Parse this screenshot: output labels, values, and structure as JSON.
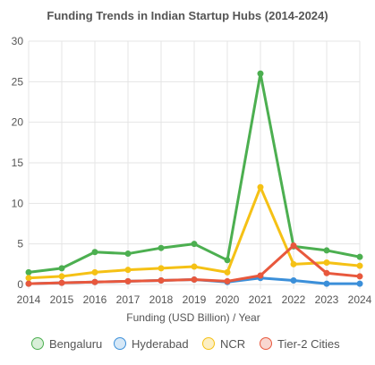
{
  "chart_data": {
    "type": "line",
    "title": "Funding Trends in Indian Startup Hubs (2014-2024)",
    "xlabel": "Funding (USD Billion) / Year",
    "ylabel": "",
    "x": [
      "2014",
      "2015",
      "2016",
      "2017",
      "2018",
      "2019",
      "2020",
      "2021",
      "2022",
      "2023",
      "2024"
    ],
    "ylim": [
      0,
      30
    ],
    "yticks": [
      "0",
      "5",
      "10",
      "15",
      "20",
      "25",
      "30"
    ],
    "grid": true,
    "legend_position": "bottom",
    "series": [
      {
        "name": "Bengaluru",
        "color": "#4caf50",
        "fill": "#d9efd9",
        "values": [
          1.5,
          2.0,
          4.0,
          3.8,
          4.5,
          5.0,
          3.0,
          26.0,
          4.7,
          4.2,
          3.4
        ]
      },
      {
        "name": "Hyderabad",
        "color": "#3b8fd9",
        "fill": "#d6e8f7",
        "values": [
          0.1,
          0.2,
          0.3,
          0.4,
          0.5,
          0.6,
          0.3,
          0.8,
          0.5,
          0.1,
          0.1
        ]
      },
      {
        "name": "NCR",
        "color": "#f5c115",
        "fill": "#fcefc4",
        "values": [
          0.8,
          1.0,
          1.5,
          1.8,
          2.0,
          2.2,
          1.5,
          12.0,
          2.5,
          2.7,
          2.3
        ]
      },
      {
        "name": "Tier-2 Cities",
        "color": "#e8583d",
        "fill": "#f9d7d0",
        "values": [
          0.1,
          0.2,
          0.3,
          0.4,
          0.5,
          0.6,
          0.4,
          1.1,
          4.8,
          1.4,
          1.0
        ]
      }
    ]
  }
}
